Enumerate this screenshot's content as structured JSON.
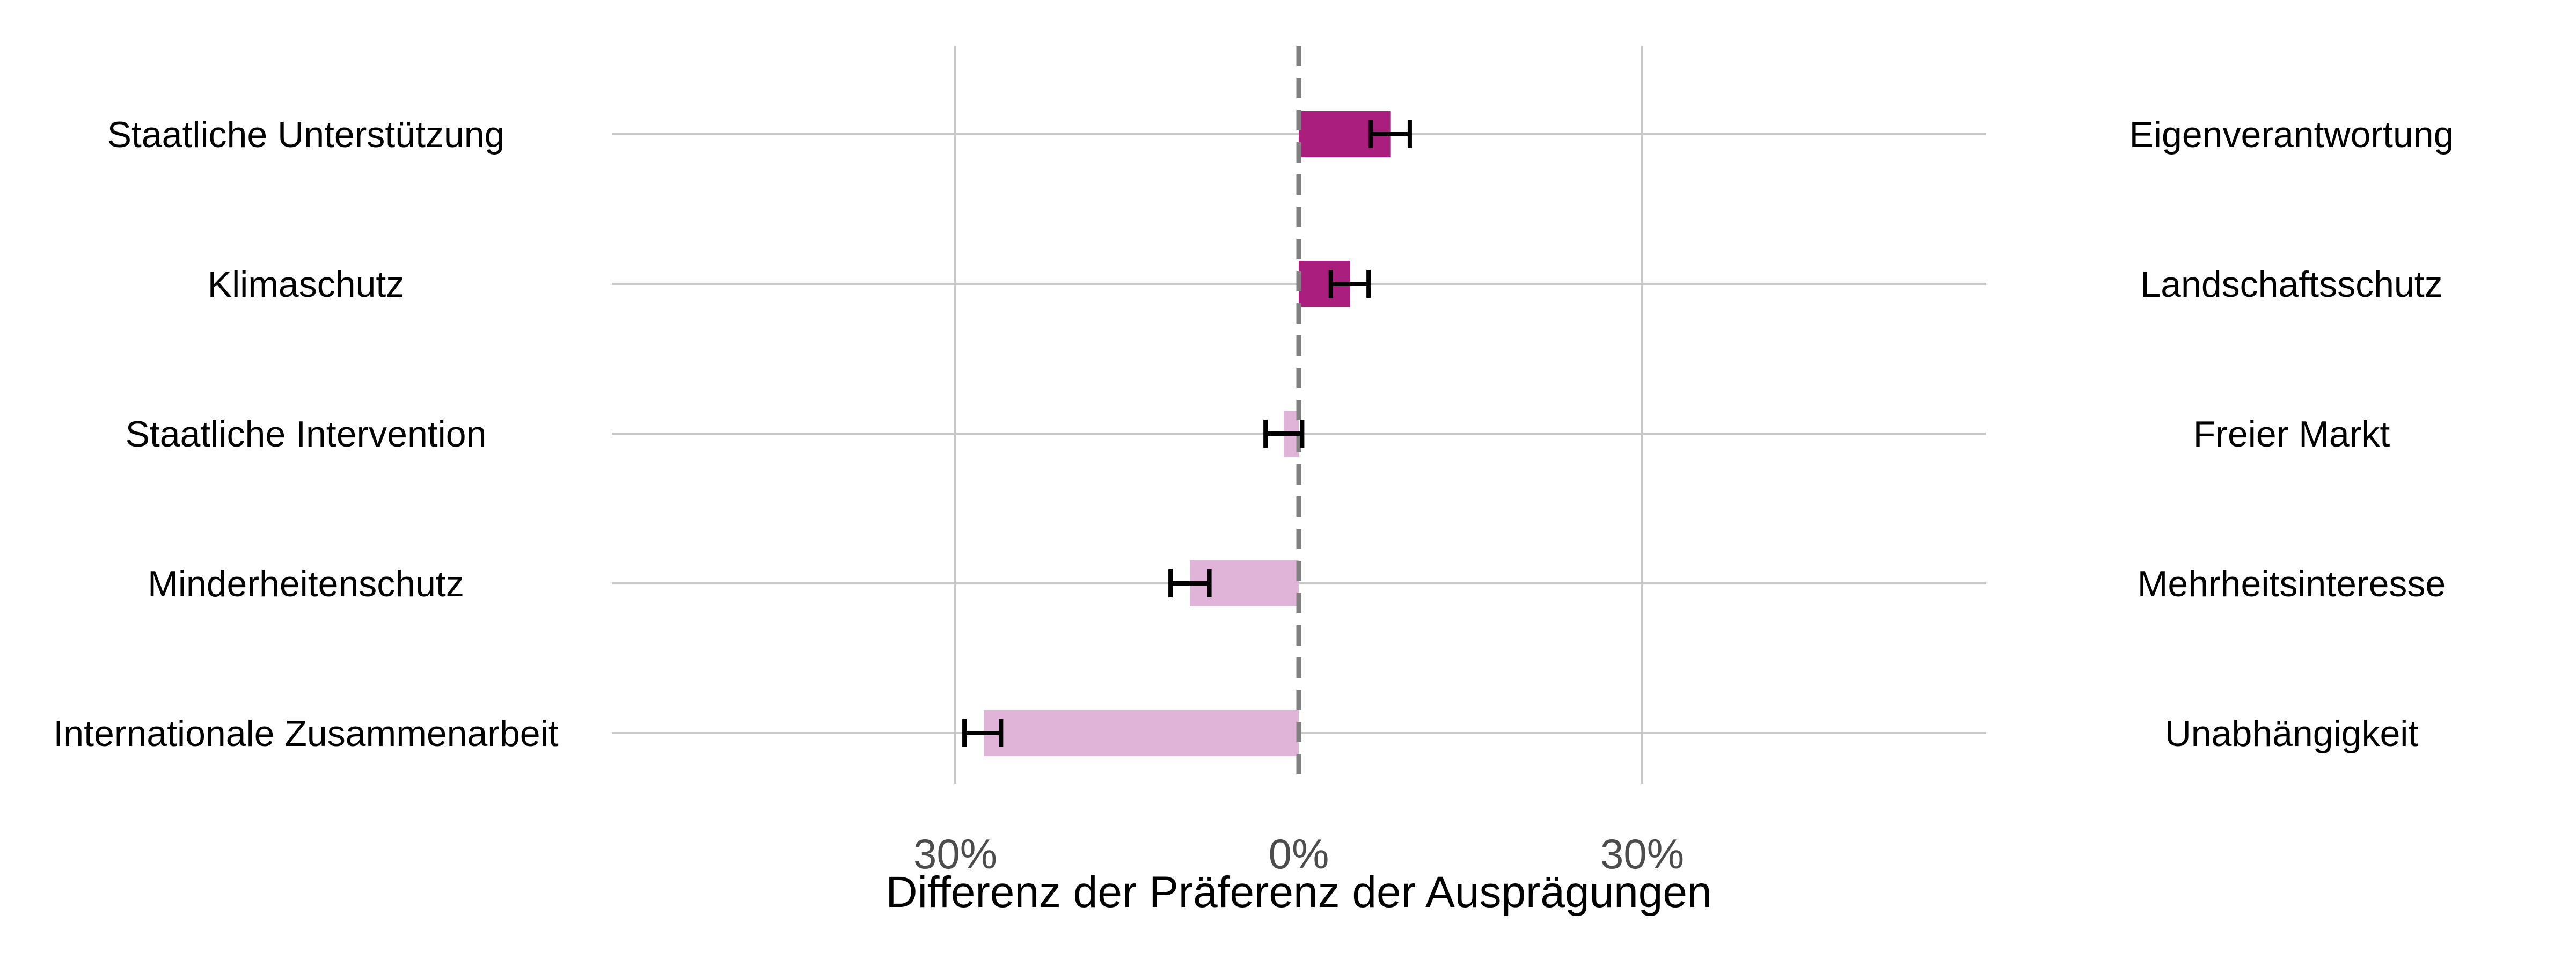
{
  "chart_data": {
    "type": "bar",
    "orientation": "horizontal",
    "xlabel": "Differenz der Präferenz der Ausprägungen",
    "xlim": [
      -0.5,
      0.5
    ],
    "x_ticks": [
      {
        "value": -0.3,
        "label": "30%"
      },
      {
        "value": 0,
        "label": "0%"
      },
      {
        "value": 0.3,
        "label": "30%"
      }
    ],
    "grid": true,
    "reference_line": {
      "value": 0,
      "style": "dashed",
      "color": "#808080"
    },
    "colors": {
      "positive": "#AA1F7E",
      "negative": "#E0B4D8",
      "errorbar": "#000000",
      "grid": "#C8C8C8"
    },
    "rows": [
      {
        "left_label": "Staatliche Unterstützung",
        "right_label": "Eigenverantwortung",
        "value": 0.08,
        "ci": [
          0.063,
          0.097
        ]
      },
      {
        "left_label": "Klimaschutz",
        "right_label": "Landschaftsschutz",
        "value": 0.045,
        "ci": [
          0.028,
          0.061
        ]
      },
      {
        "left_label": "Staatliche Intervention",
        "right_label": "Freier Markt",
        "value": -0.013,
        "ci": [
          -0.029,
          0.003
        ]
      },
      {
        "left_label": "Minderheitenschutz",
        "right_label": "Mehrheitsinteresse",
        "value": -0.095,
        "ci": [
          -0.112,
          -0.078
        ]
      },
      {
        "left_label": "Internationale Zusammenarbeit",
        "right_label": "Unabhängigkeit",
        "value": -0.275,
        "ci": [
          -0.292,
          -0.26
        ]
      }
    ]
  }
}
